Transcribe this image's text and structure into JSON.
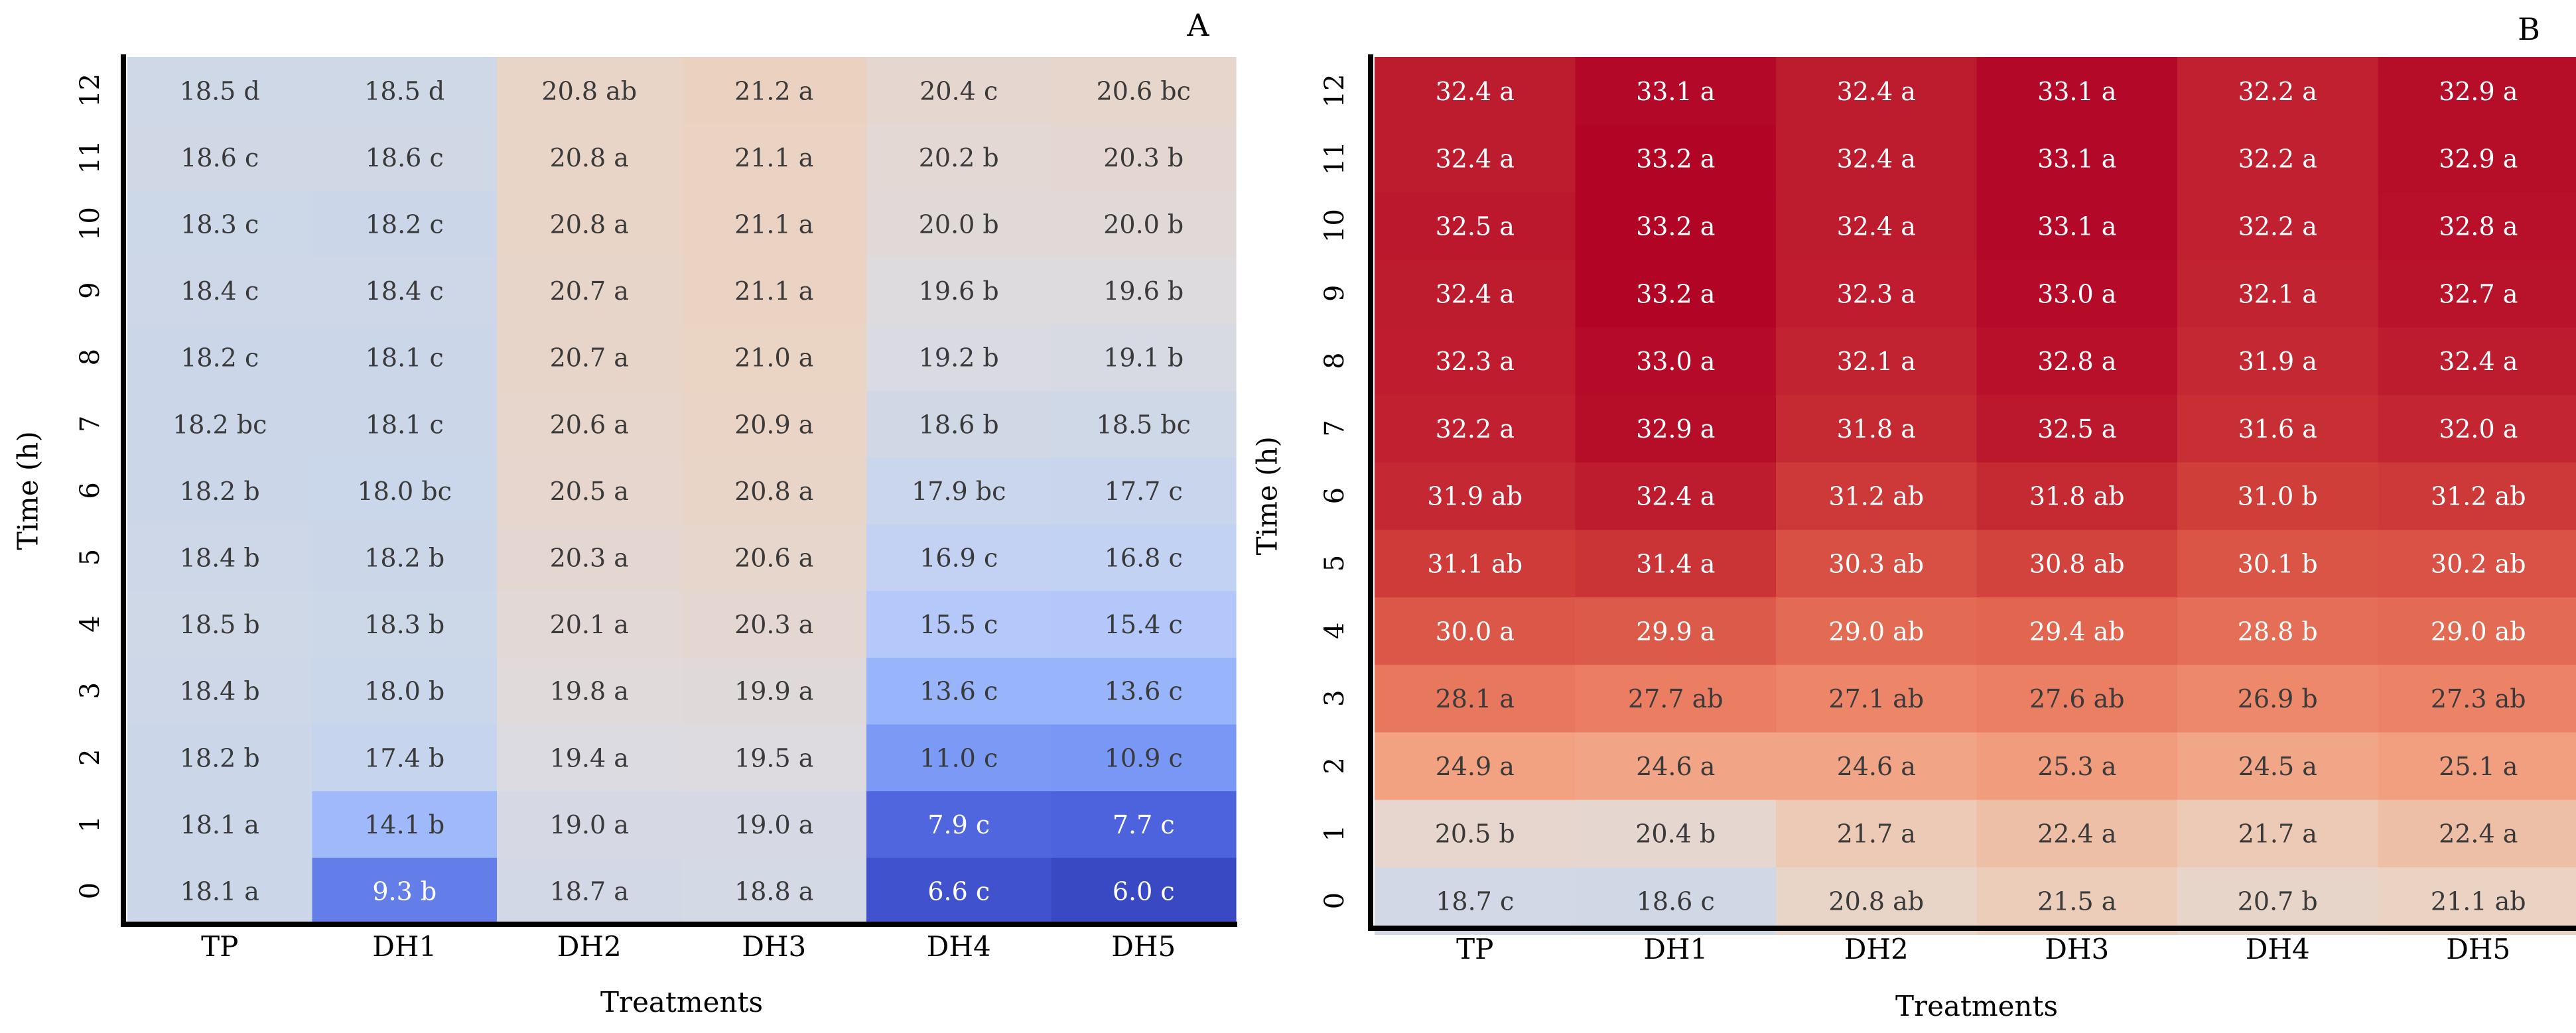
{
  "chart_data": [
    {
      "type": "heatmap",
      "panel_label": "A",
      "xlabel": "Treatments",
      "ylabel": "Time (h)",
      "x_categories": [
        "TP",
        "DH1",
        "DH2",
        "DH3",
        "DH4",
        "DH5"
      ],
      "y_categories": [
        "0",
        "1",
        "2",
        "3",
        "4",
        "5",
        "6",
        "7",
        "8",
        "9",
        "10",
        "11",
        "12"
      ],
      "rows": [
        {
          "values": [
            18.1,
            9.3,
            18.7,
            18.8,
            6.6,
            6.0
          ],
          "labels": [
            "18.1 a",
            "9.3 b",
            "18.7 a",
            "18.8 a",
            "6.6 c",
            "6.0 c"
          ]
        },
        {
          "values": [
            18.1,
            14.1,
            19.0,
            19.0,
            7.9,
            7.7
          ],
          "labels": [
            "18.1 a",
            "14.1 b",
            "19.0 a",
            "19.0 a",
            "7.9 c",
            "7.7 c"
          ]
        },
        {
          "values": [
            18.2,
            17.4,
            19.4,
            19.5,
            11.0,
            10.9
          ],
          "labels": [
            "18.2 b",
            "17.4 b",
            "19.4 a",
            "19.5 a",
            "11.0 c",
            "10.9 c"
          ]
        },
        {
          "values": [
            18.4,
            18.0,
            19.8,
            19.9,
            13.6,
            13.6
          ],
          "labels": [
            "18.4 b",
            "18.0 b",
            "19.8 a",
            "19.9 a",
            "13.6 c",
            "13.6 c"
          ]
        },
        {
          "values": [
            18.5,
            18.3,
            20.1,
            20.3,
            15.5,
            15.4
          ],
          "labels": [
            "18.5 b",
            "18.3 b",
            "20.1 a",
            "20.3 a",
            "15.5 c",
            "15.4 c"
          ]
        },
        {
          "values": [
            18.4,
            18.2,
            20.3,
            20.6,
            16.9,
            16.8
          ],
          "labels": [
            "18.4 b",
            "18.2 b",
            "20.3 a",
            "20.6 a",
            "16.9 c",
            "16.8 c"
          ]
        },
        {
          "values": [
            18.2,
            18.0,
            20.5,
            20.8,
            17.9,
            17.7
          ],
          "labels": [
            "18.2 b",
            "18.0 bc",
            "20.5 a",
            "20.8 a",
            "17.9 bc",
            "17.7 c"
          ]
        },
        {
          "values": [
            18.2,
            18.1,
            20.6,
            20.9,
            18.6,
            18.5
          ],
          "labels": [
            "18.2 bc",
            "18.1 c",
            "20.6 a",
            "20.9 a",
            "18.6 b",
            "18.5 bc"
          ]
        },
        {
          "values": [
            18.2,
            18.1,
            20.7,
            21.0,
            19.2,
            19.1
          ],
          "labels": [
            "18.2 c",
            "18.1 c",
            "20.7 a",
            "21.0 a",
            "19.2 b",
            "19.1 b"
          ]
        },
        {
          "values": [
            18.4,
            18.4,
            20.7,
            21.1,
            19.6,
            19.6
          ],
          "labels": [
            "18.4 c",
            "18.4 c",
            "20.7 a",
            "21.1 a",
            "19.6 b",
            "19.6 b"
          ]
        },
        {
          "values": [
            18.3,
            18.2,
            20.8,
            21.1,
            20.0,
            20.0
          ],
          "labels": [
            "18.3 c",
            "18.2 c",
            "20.8 a",
            "21.1 a",
            "20.0 b",
            "20.0 b"
          ]
        },
        {
          "values": [
            18.6,
            18.6,
            20.8,
            21.1,
            20.2,
            20.3
          ],
          "labels": [
            "18.6 c",
            "18.6 c",
            "20.8 a",
            "21.1 a",
            "20.2 b",
            "20.3 b"
          ]
        },
        {
          "values": [
            18.5,
            18.5,
            20.8,
            21.2,
            20.4,
            20.6
          ],
          "labels": [
            "18.5 d",
            "18.5 d",
            "20.8 ab",
            "21.2 a",
            "20.4 c",
            "20.6 bc"
          ]
        }
      ]
    },
    {
      "type": "heatmap",
      "panel_label": "B",
      "xlabel": "Treatments",
      "ylabel": "Time (h)",
      "x_categories": [
        "TP",
        "DH1",
        "DH2",
        "DH3",
        "DH4",
        "DH5"
      ],
      "y_categories": [
        "0",
        "1",
        "2",
        "3",
        "4",
        "5",
        "6",
        "7",
        "8",
        "9",
        "10",
        "11",
        "12"
      ],
      "rows": [
        {
          "values": [
            18.7,
            18.6,
            20.8,
            21.5,
            20.7,
            21.1
          ],
          "labels": [
            "18.7 c",
            "18.6 c",
            "20.8 ab",
            "21.5 a",
            "20.7 b",
            "21.1 ab"
          ]
        },
        {
          "values": [
            20.5,
            20.4,
            21.7,
            22.4,
            21.7,
            22.4
          ],
          "labels": [
            "20.5 b",
            "20.4 b",
            "21.7 a",
            "22.4 a",
            "21.7 a",
            "22.4 a"
          ]
        },
        {
          "values": [
            24.9,
            24.6,
            24.6,
            25.3,
            24.5,
            25.1
          ],
          "labels": [
            "24.9 a",
            "24.6 a",
            "24.6 a",
            "25.3 a",
            "24.5 a",
            "25.1 a"
          ]
        },
        {
          "values": [
            28.1,
            27.7,
            27.1,
            27.6,
            26.9,
            27.3
          ],
          "labels": [
            "28.1 a",
            "27.7 ab",
            "27.1 ab",
            "27.6 ab",
            "26.9 b",
            "27.3 ab"
          ]
        },
        {
          "values": [
            30.0,
            29.9,
            29.0,
            29.4,
            28.8,
            29.0
          ],
          "labels": [
            "30.0 a",
            "29.9 a",
            "29.0 ab",
            "29.4 ab",
            "28.8 b",
            "29.0 ab"
          ]
        },
        {
          "values": [
            31.1,
            31.4,
            30.3,
            30.8,
            30.1,
            30.2
          ],
          "labels": [
            "31.1 ab",
            "31.4 a",
            "30.3 ab",
            "30.8 ab",
            "30.1 b",
            "30.2 ab"
          ]
        },
        {
          "values": [
            31.9,
            32.4,
            31.2,
            31.8,
            31.0,
            31.2
          ],
          "labels": [
            "31.9 ab",
            "32.4 a",
            "31.2 ab",
            "31.8 ab",
            "31.0 b",
            "31.2 ab"
          ]
        },
        {
          "values": [
            32.2,
            32.9,
            31.8,
            32.5,
            31.6,
            32.0
          ],
          "labels": [
            "32.2 a",
            "32.9 a",
            "31.8 a",
            "32.5 a",
            "31.6 a",
            "32.0 a"
          ]
        },
        {
          "values": [
            32.3,
            33.0,
            32.1,
            32.8,
            31.9,
            32.4
          ],
          "labels": [
            "32.3 a",
            "33.0 a",
            "32.1 a",
            "32.8 a",
            "31.9 a",
            "32.4 a"
          ]
        },
        {
          "values": [
            32.4,
            33.2,
            32.3,
            33.0,
            32.1,
            32.7
          ],
          "labels": [
            "32.4 a",
            "33.2 a",
            "32.3 a",
            "33.0 a",
            "32.1 a",
            "32.7 a"
          ]
        },
        {
          "values": [
            32.5,
            33.2,
            32.4,
            33.1,
            32.2,
            32.8
          ],
          "labels": [
            "32.5 a",
            "33.2 a",
            "32.4 a",
            "33.1 a",
            "32.2 a",
            "32.8 a"
          ]
        },
        {
          "values": [
            32.4,
            33.2,
            32.4,
            33.1,
            32.2,
            32.9
          ],
          "labels": [
            "32.4 a",
            "33.2 a",
            "32.4 a",
            "33.1 a",
            "32.2 a",
            "32.9 a"
          ]
        },
        {
          "values": [
            32.4,
            33.1,
            32.4,
            33.1,
            32.2,
            32.9
          ],
          "labels": [
            "32.4 a",
            "33.1 a",
            "32.4 a",
            "33.1 a",
            "32.2 a",
            "32.9 a"
          ]
        }
      ]
    }
  ]
}
